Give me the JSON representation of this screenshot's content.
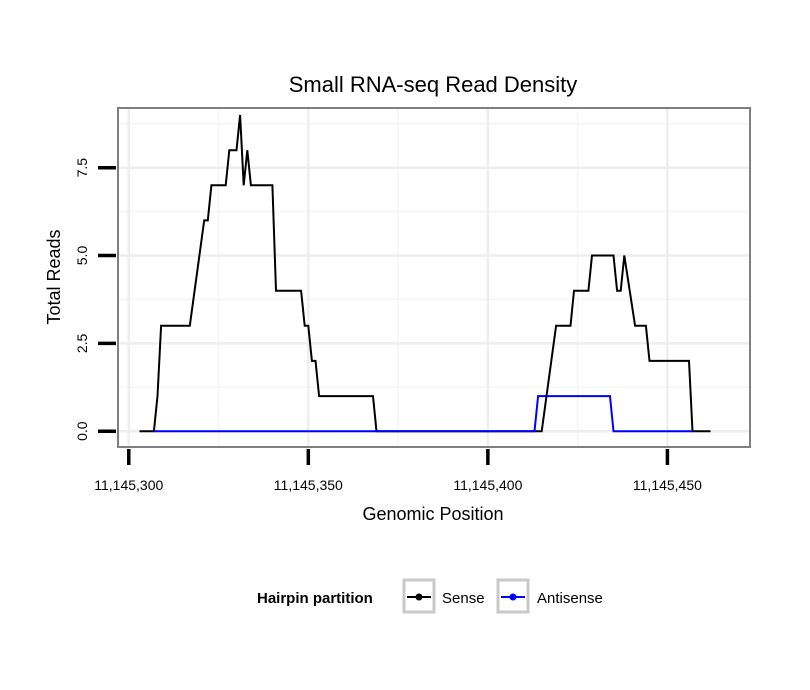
{
  "chart_data": {
    "type": "line",
    "title": "Small RNA-seq Read Density",
    "xlabel": "Genomic Position",
    "ylabel": "Total Reads",
    "xlim": [
      11145297,
      11145473
    ],
    "ylim": [
      -0.45,
      9.2
    ],
    "x_ticks": [
      {
        "value": 11145300,
        "label": "11,145,300"
      },
      {
        "value": 11145350,
        "label": "11,145,350"
      },
      {
        "value": 11145400,
        "label": "11,145,400"
      },
      {
        "value": 11145450,
        "label": "11,145,450"
      }
    ],
    "y_ticks": [
      {
        "value": 0,
        "label": "0.0"
      },
      {
        "value": 2.5,
        "label": "2.5"
      },
      {
        "value": 5,
        "label": "5.0"
      },
      {
        "value": 7.5,
        "label": "7.5"
      }
    ],
    "legend": {
      "title": "Hairpin partition",
      "position": "bottom",
      "entries": [
        {
          "name": "Sense",
          "color": "#000000"
        },
        {
          "name": "Antisense",
          "color": "#0000ff"
        }
      ]
    },
    "series": [
      {
        "name": "Sense",
        "color": "#000000",
        "points": [
          [
            11145303,
            0
          ],
          [
            11145307,
            0
          ],
          [
            11145308,
            1
          ],
          [
            11145309,
            3
          ],
          [
            11145317,
            3
          ],
          [
            11145321,
            6
          ],
          [
            11145322,
            6
          ],
          [
            11145323,
            7
          ],
          [
            11145327,
            7
          ],
          [
            11145328,
            8
          ],
          [
            11145330,
            8
          ],
          [
            11145331,
            9
          ],
          [
            11145332,
            7
          ],
          [
            11145333,
            8
          ],
          [
            11145334,
            7
          ],
          [
            11145340,
            7
          ],
          [
            11145341,
            4
          ],
          [
            11145348,
            4
          ],
          [
            11145349,
            3
          ],
          [
            11145350,
            3
          ],
          [
            11145351,
            2
          ],
          [
            11145352,
            2
          ],
          [
            11145353,
            1
          ],
          [
            11145368,
            1
          ],
          [
            11145369,
            0
          ],
          [
            11145415,
            0
          ],
          [
            11145419,
            3
          ],
          [
            11145423,
            3
          ],
          [
            11145424,
            4
          ],
          [
            11145428,
            4
          ],
          [
            11145429,
            5
          ],
          [
            11145435,
            5
          ],
          [
            11145436,
            4
          ],
          [
            11145437,
            4
          ],
          [
            11145438,
            5
          ],
          [
            11145441,
            3
          ],
          [
            11145444,
            3
          ],
          [
            11145445,
            2
          ],
          [
            11145456,
            2
          ],
          [
            11145457,
            0
          ],
          [
            11145462,
            0
          ]
        ]
      },
      {
        "name": "Antisense",
        "color": "#0000ff",
        "points": [
          [
            11145307,
            0
          ],
          [
            11145413,
            0
          ],
          [
            11145414,
            1
          ],
          [
            11145434,
            1
          ],
          [
            11145435,
            0
          ],
          [
            11145457,
            0
          ]
        ]
      }
    ]
  }
}
